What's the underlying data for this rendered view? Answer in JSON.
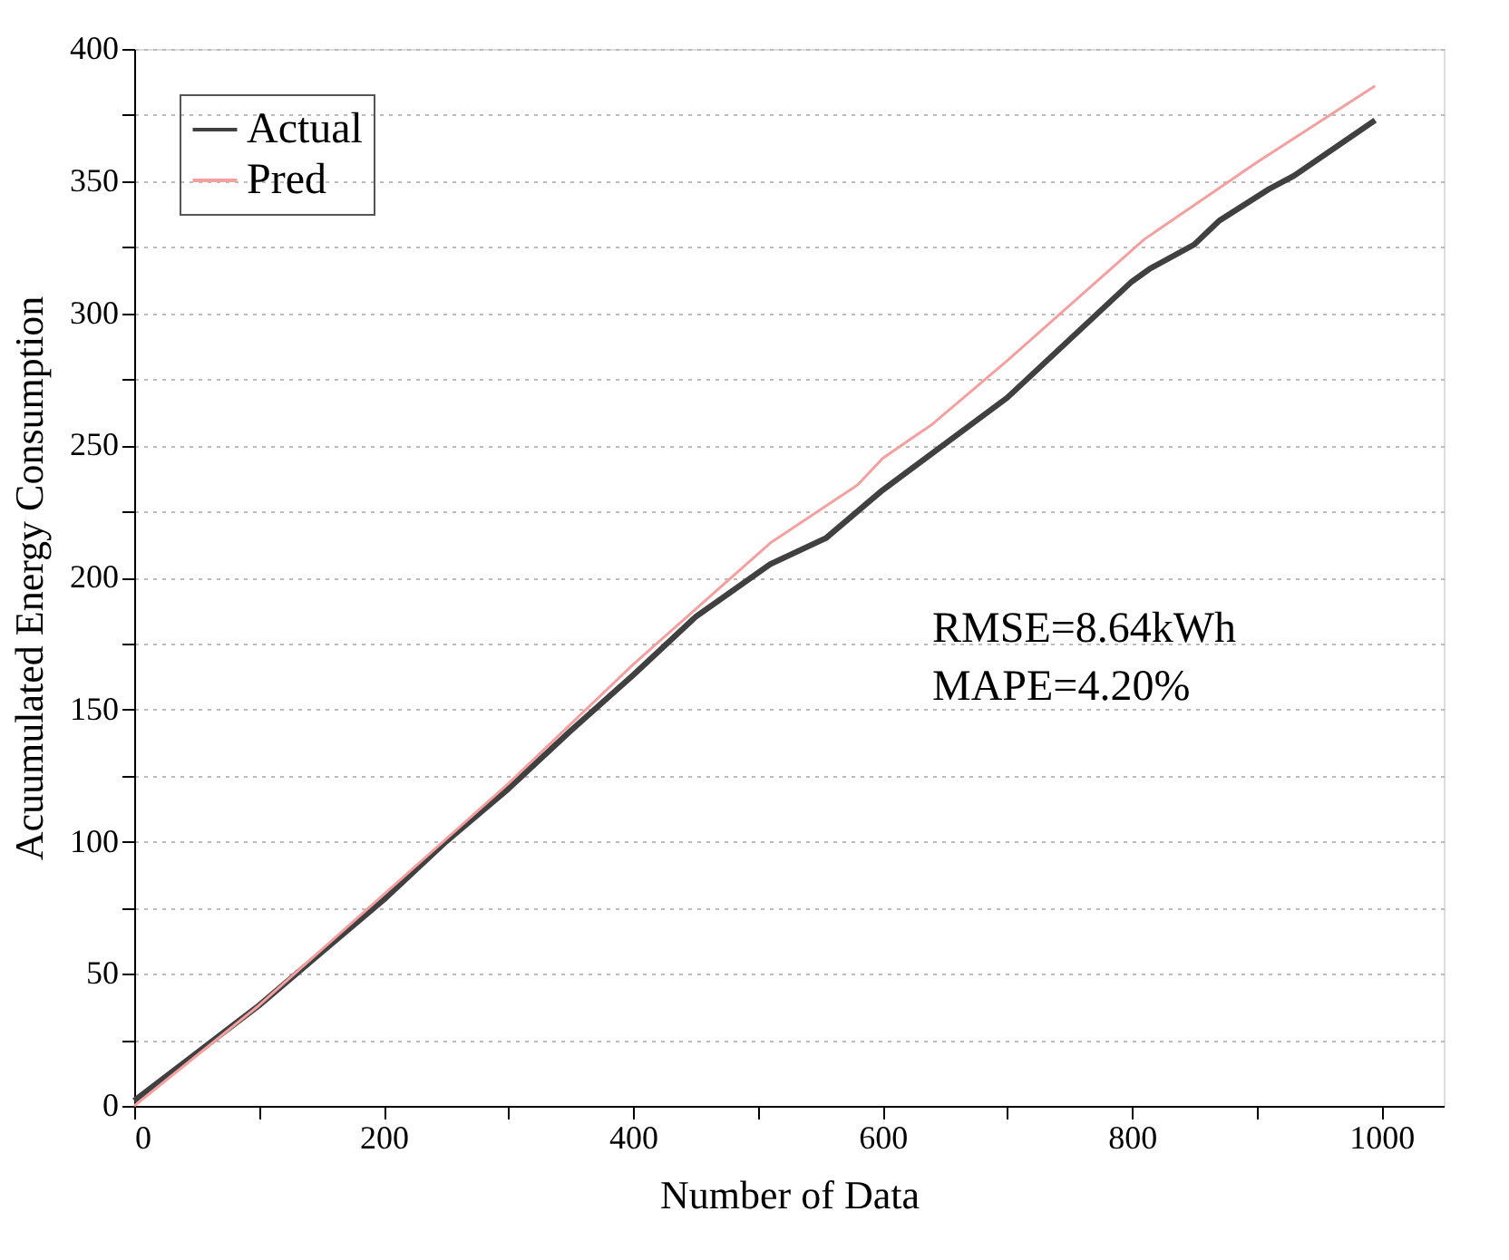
{
  "chart_data": {
    "type": "line",
    "xlabel": "Number of Data",
    "ylabel": "Acuumulated Energy Consumption",
    "xlim": [
      0,
      1050
    ],
    "xticks": [
      0,
      {
        "value": 100,
        "label": null
      },
      200,
      {
        "value": 300,
        "label": null
      },
      400,
      {
        "value": 500,
        "label": null
      },
      600,
      {
        "value": 700,
        "label": null
      },
      800,
      {
        "value": 900,
        "label": null
      },
      1000
    ],
    "ylim": [
      0,
      400
    ],
    "yticks": [
      0,
      {
        "value": 25,
        "label": null
      },
      50,
      {
        "value": 75,
        "label": null
      },
      100,
      {
        "value": 125,
        "label": null
      },
      150,
      {
        "value": 175,
        "label": null
      },
      200,
      {
        "value": 225,
        "label": null
      },
      250,
      {
        "value": 275,
        "label": null
      },
      300,
      {
        "value": 325,
        "label": null
      },
      350,
      {
        "value": 375,
        "label": null
      },
      400
    ],
    "grid": "y",
    "legend": "top left",
    "line_style": "solid",
    "marker": "none",
    "annotations": [
      "RMSE=8.64kWh",
      "MAPE=4.20%"
    ],
    "series": [
      {
        "name": "Actual",
        "color": "#404040",
        "x": [
          0,
          50,
          100,
          150,
          200,
          250,
          300,
          350,
          400,
          450,
          510,
          555,
          600,
          620,
          700,
          800,
          815,
          850,
          870,
          910,
          930,
          995
        ],
        "values": [
          2,
          20,
          38,
          58,
          78,
          100,
          120,
          142,
          163,
          185,
          205,
          215,
          233,
          240,
          268,
          312,
          317,
          326,
          335,
          347,
          352,
          373
        ]
      },
      {
        "name": "Pred",
        "color": "#f4a0a0",
        "x": [
          0,
          100,
          200,
          300,
          400,
          510,
          580,
          600,
          640,
          700,
          810,
          900,
          995
        ],
        "values": [
          0,
          38,
          80,
          122,
          167,
          213,
          235,
          245,
          258,
          282,
          328,
          357,
          386
        ]
      }
    ]
  }
}
